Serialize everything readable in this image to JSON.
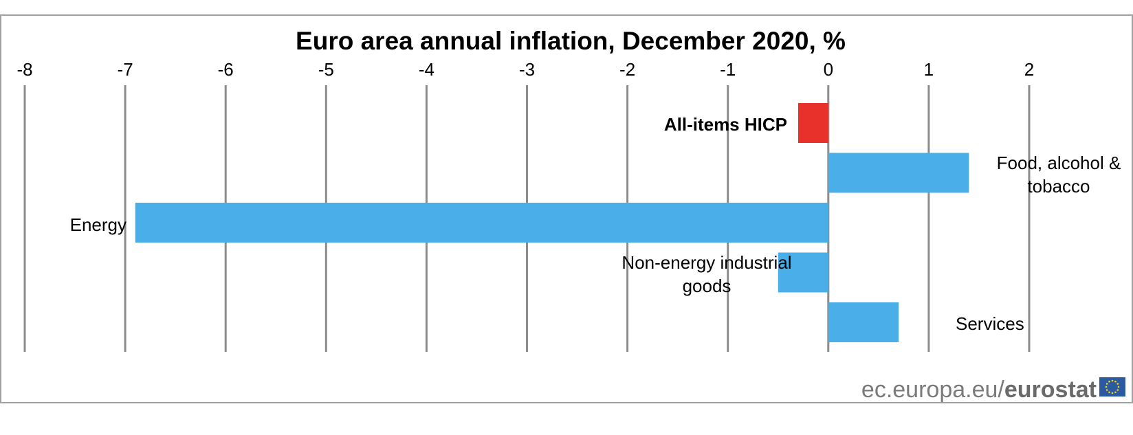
{
  "chart_data": {
    "type": "bar",
    "orientation": "horizontal",
    "title": "Euro area annual inflation, December 2020, %",
    "xlim": [
      -8,
      2
    ],
    "x_ticks": [
      "-8",
      "-7",
      "-6",
      "-5",
      "-4",
      "-3",
      "-2",
      "-1",
      "0",
      "1",
      "2"
    ],
    "grid": true,
    "categories": [
      "All-items HICP",
      "Food, alcohol & tobacco",
      "Energy",
      "Non-energy industrial goods",
      "Services"
    ],
    "category_label_lines": [
      [
        "All-items HICP"
      ],
      [
        "Food, alcohol &",
        "tobacco"
      ],
      [
        "Energy"
      ],
      [
        "Non-energy industrial",
        "goods"
      ],
      [
        "Services"
      ]
    ],
    "values": [
      -0.3,
      1.4,
      -6.9,
      -0.5,
      0.7
    ],
    "bar_colors": [
      "#e8312a",
      "#4aaee8",
      "#4aaee8",
      "#4aaee8",
      "#4aaee8"
    ],
    "highlighted_category": "All-items HICP"
  },
  "source": {
    "prefix": "ec.europa.eu/",
    "brand": "eurostat"
  },
  "colors": {
    "highlight": "#e8312a",
    "bar": "#4aaee8",
    "grid": "#8c8c8c",
    "frame": "#a0a0a0",
    "source_text": "#7a7a7a",
    "flag_blue": "#2c5aa0",
    "flag_star": "#f5d414"
  }
}
